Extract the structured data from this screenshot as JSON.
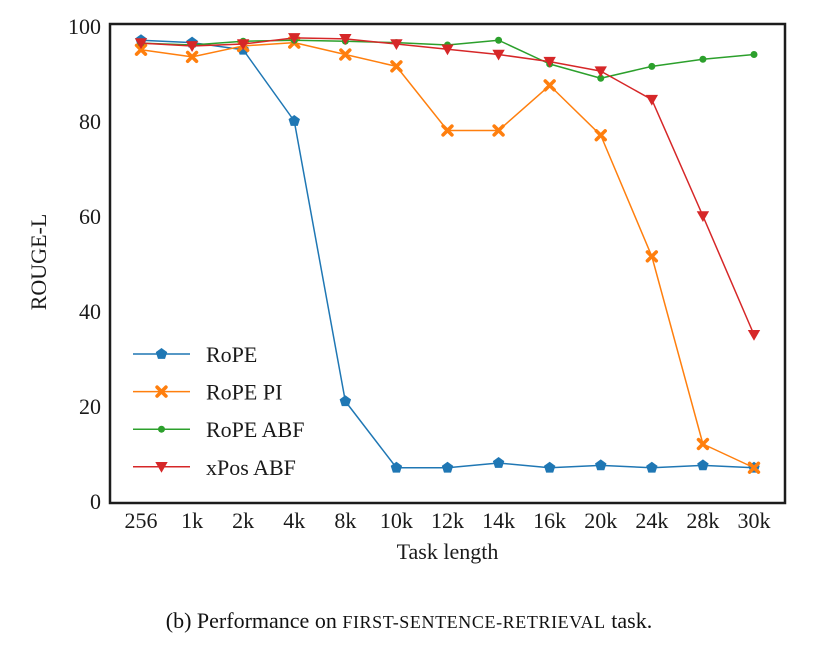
{
  "figure": {
    "caption_prefix": "(b) Performance on ",
    "caption_smallcaps": "FIRST-SENTENCE-RETRIEVAL",
    "caption_suffix": " task."
  },
  "chart_data": {
    "type": "line",
    "title": "",
    "xlabel": "Task length",
    "ylabel": "ROUGE-L",
    "ylim": [
      0,
      100
    ],
    "yticks": [
      0,
      20,
      40,
      60,
      80,
      100
    ],
    "grid": false,
    "legend_position": "lower-left-inside",
    "categories": [
      "256",
      "1k",
      "2k",
      "4k",
      "8k",
      "10k",
      "12k",
      "14k",
      "16k",
      "20k",
      "24k",
      "28k",
      "30k"
    ],
    "series": [
      {
        "name": "RoPE",
        "color": "#1f77b4",
        "marker": "pentagon",
        "values": [
          97,
          96.5,
          95,
          80,
          21,
          7,
          7,
          8,
          7,
          7.5,
          7,
          7.5,
          7
        ]
      },
      {
        "name": "RoPE PI",
        "color": "#ff7f0e",
        "marker": "x-filled",
        "values": [
          95,
          93.5,
          95.8,
          96.5,
          94,
          91.5,
          78,
          78,
          87.5,
          77,
          51.5,
          12,
          7
        ]
      },
      {
        "name": "RoPE ABF",
        "color": "#2ca02c",
        "marker": "circle",
        "values": [
          96.4,
          96,
          96.8,
          97,
          96.8,
          96.5,
          96,
          97,
          92,
          89,
          91.5,
          93,
          94
        ]
      },
      {
        "name": "xPos ABF",
        "color": "#d62728",
        "marker": "triangle-down",
        "values": [
          96.4,
          95.8,
          96.2,
          97.5,
          97.3,
          96.2,
          95.1,
          94,
          92.5,
          90.5,
          84.5,
          60,
          35
        ]
      }
    ]
  }
}
